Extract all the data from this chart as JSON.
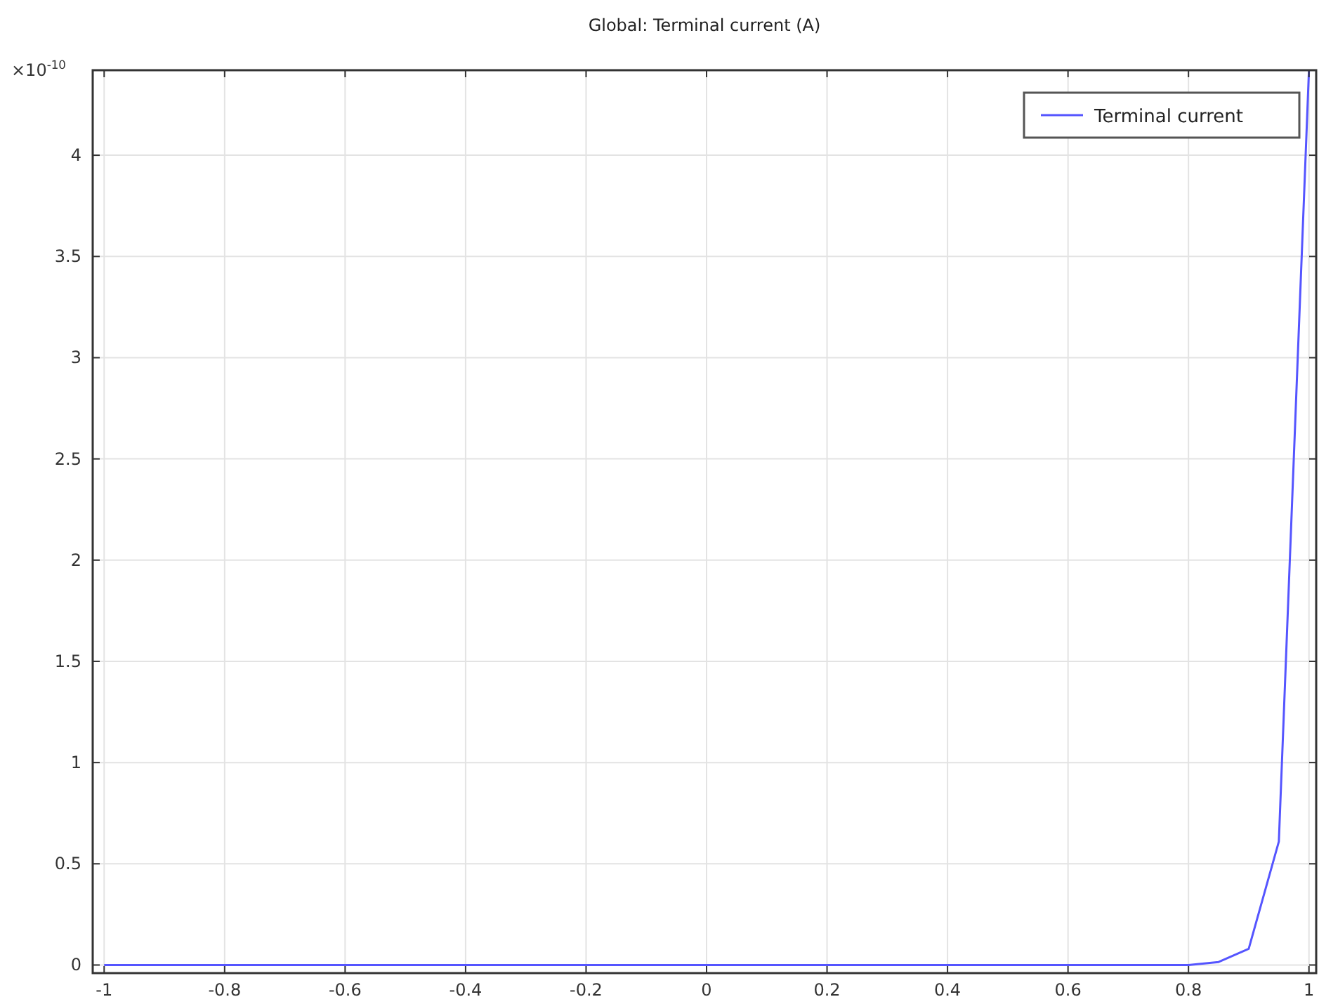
{
  "chart_data": {
    "type": "line",
    "title": "Global: Terminal current (A)",
    "annotations": [
      "×10$^{-10}$"
    ],
    "x": [
      -1,
      -0.9,
      -0.8,
      -0.7,
      -0.6,
      -0.5,
      -0.4,
      -0.3,
      -0.2,
      -0.1,
      0,
      0.1,
      0.2,
      0.3,
      0.4,
      0.5,
      0.6,
      0.7,
      0.8,
      0.85,
      0.9,
      0.95,
      1
    ],
    "series": [
      {
        "name": "Terminal current",
        "color": "#5555ff",
        "values": [
          0,
          0,
          0,
          0,
          0,
          0,
          0,
          0,
          0,
          0,
          0,
          0,
          0,
          0,
          0,
          0,
          0,
          0,
          0,
          0.015,
          0.08,
          0.61,
          4.42
        ]
      }
    ],
    "xlim": [
      -1.019,
      1.012
    ],
    "ylim": [
      -0.04,
      4.42
    ],
    "xticks": [
      -1,
      -0.8,
      -0.6,
      -0.4,
      -0.2,
      0,
      0.2,
      0.4,
      0.6,
      0.8,
      1
    ],
    "yticks": [
      0,
      0.5,
      1,
      1.5,
      2,
      2.5,
      3,
      3.5,
      4
    ],
    "grid": true,
    "legend": "top right",
    "marker": "none",
    "line_style": "solid"
  }
}
